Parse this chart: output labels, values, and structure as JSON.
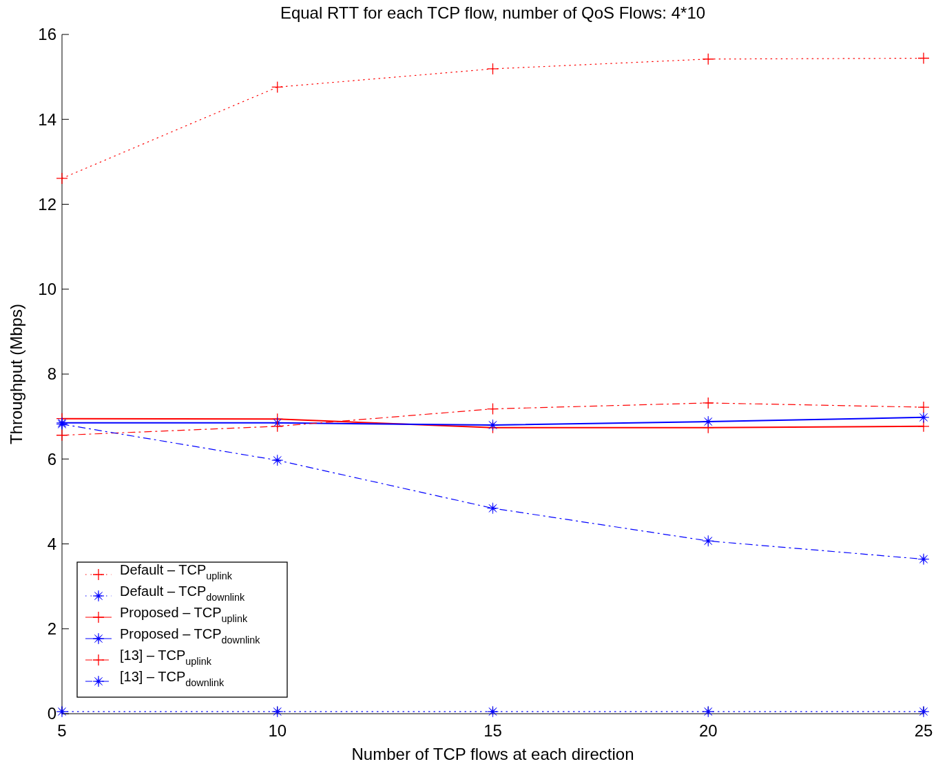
{
  "chart_data": {
    "type": "line",
    "title": "Equal RTT for each TCP flow, number of QoS Flows: 4*10",
    "xlabel": "Number of TCP flows at each direction",
    "ylabel": "Throughput (Mbps)",
    "x": [
      5,
      10,
      15,
      20,
      25
    ],
    "xlim": [
      5,
      25
    ],
    "xticks": [
      5,
      10,
      15,
      20,
      25
    ],
    "ylim": [
      0,
      16
    ],
    "yticks": [
      0,
      2,
      4,
      6,
      8,
      10,
      12,
      14,
      16
    ],
    "grid": false,
    "legend": "bottom left",
    "series": [
      {
        "name": "Default – TCP$_{uplink}$",
        "color": "#ff0000",
        "line_style": "dotted",
        "marker": "cross",
        "values": [
          12.61,
          14.76,
          15.19,
          15.42,
          15.44
        ]
      },
      {
        "name": "Default – TCP$_{downlink}$",
        "color": "#0000ff",
        "line_style": "dotted",
        "marker": "star",
        "values": [
          0.05,
          0.05,
          0.05,
          0.05,
          0.05
        ]
      },
      {
        "name": "Proposed – TCP$_{uplink}$",
        "color": "#ff0000",
        "line_style": "solid",
        "marker": "cross",
        "values": [
          6.95,
          6.94,
          6.74,
          6.74,
          6.77
        ]
      },
      {
        "name": "Proposed – TCP$_{downlink}$",
        "color": "#0000ff",
        "line_style": "solid",
        "marker": "star",
        "values": [
          6.85,
          6.85,
          6.8,
          6.88,
          6.98
        ]
      },
      {
        "name": "[13] – TCP$_{uplink}$",
        "color": "#ff0000",
        "line_style": "dashed",
        "marker": "cross",
        "values": [
          6.56,
          6.77,
          7.18,
          7.32,
          7.22
        ]
      },
      {
        "name": "[13] – TCP$_{downlink}$",
        "color": "#0000ff",
        "line_style": "dashed",
        "marker": "star",
        "values": [
          6.82,
          5.97,
          4.84,
          4.07,
          3.64
        ]
      }
    ]
  }
}
